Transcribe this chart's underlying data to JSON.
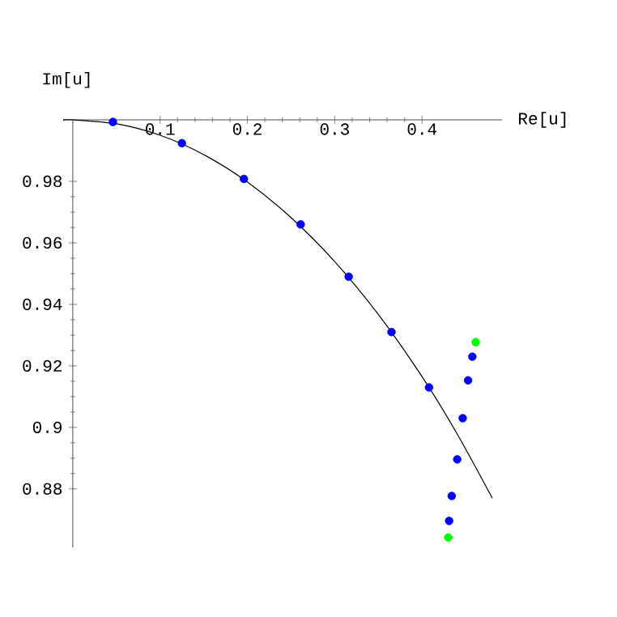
{
  "chart_data": {
    "type": "scatter",
    "xlabel": "Re[u]",
    "ylabel": "Im[u]",
    "xlim": [
      -0.011,
      0.4916
    ],
    "ylim": [
      0.861,
      1.0
    ],
    "xticks": [
      0.1,
      0.2,
      0.3,
      0.4
    ],
    "yticks": [
      0.88,
      0.9,
      0.92,
      0.94,
      0.96,
      0.98
    ],
    "marker": "circle",
    "series": [
      {
        "type": "line",
        "marker": "none",
        "color": "#000000",
        "x": [
          -0.011,
          0.0,
          0.05,
          0.1,
          0.15,
          0.2,
          0.25,
          0.3,
          0.35,
          0.4,
          0.44,
          0.4805
        ],
        "values": [
          0.9999,
          1.0,
          0.9987,
          0.995,
          0.9887,
          0.9798,
          0.9682,
          0.9539,
          0.9367,
          0.9165,
          0.898,
          0.877
        ]
      },
      {
        "color": "#0000ff",
        "x": [
          0.046,
          0.125,
          0.196,
          0.261,
          0.316,
          0.365,
          0.408,
          0.4466,
          0.4527,
          0.4576,
          0.4403,
          0.434,
          0.431
        ],
        "values": [
          0.9993,
          0.9924,
          0.9808,
          0.966,
          0.949,
          0.931,
          0.913,
          0.903,
          0.9153,
          0.923,
          0.8896,
          0.8777,
          0.8696
        ]
      },
      {
        "color": "#00ff00",
        "x": [
          0.4614,
          0.43
        ],
        "values": [
          0.9277,
          0.8642
        ]
      }
    ]
  }
}
